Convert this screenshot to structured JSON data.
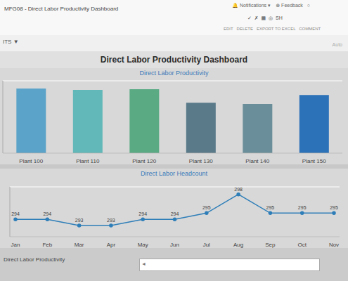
{
  "chart_data": [
    {
      "type": "bar",
      "title": "Direct Labor Productivity Dashboard",
      "subtitle": "Direct Labor Productivity",
      "categories": [
        "Plant 100",
        "Plant 110",
        "Plant 120",
        "Plant 130",
        "Plant 140",
        "Plant 150"
      ],
      "values": [
        100,
        98,
        99,
        78,
        76,
        90
      ],
      "colors": [
        "#5ba3c9",
        "#62b8b8",
        "#5aaa84",
        "#5a7a8a",
        "#6a8f9a",
        "#2b72b8"
      ],
      "ylim": [
        0,
        112
      ],
      "yticks": [
        0,
        13.5,
        27,
        40.5,
        54,
        67.5,
        81,
        94.5,
        108
      ],
      "grid": true,
      "tick_labels": "x",
      "annotations": [
        "MFG08 - Direct Labor Productivity Dashboard",
        "🔔 Notifications ▾    ⊕ Feedback   ○",
        "✓  ✗  ▦  ◎  SH",
        "EDIT   DELETE   EXPORT TO EXCEL   COMMENT",
        "ITS ▼",
        "Auto",
        "Direct Labor Productivity",
        "◄"
      ]
    },
    {
      "type": "line",
      "subtitle": "Direct Labor Headcount",
      "categories": [
        "Jan",
        "Feb",
        "Mar",
        "Apr",
        "May",
        "Jun",
        "Jul",
        "Aug",
        "Sep",
        "Oct",
        "Nov"
      ],
      "values": [
        294,
        294,
        293,
        293,
        294,
        294,
        295,
        298,
        295,
        295,
        295
      ],
      "color": "#2e7eb8",
      "ylim": [
        291.2,
        299.2
      ],
      "yticks": [
        292,
        293,
        294,
        295,
        296,
        297,
        298,
        299
      ],
      "grid": true,
      "tick_labels": "x",
      "data_labels": true,
      "marker": "circle"
    }
  ]
}
